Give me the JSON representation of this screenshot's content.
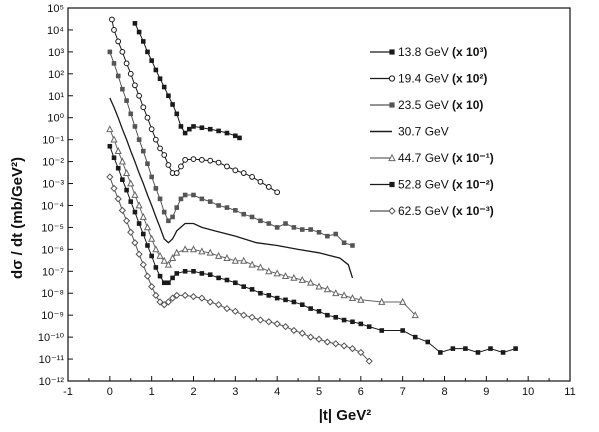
{
  "chart_data": {
    "type": "scatter",
    "title": "",
    "xlabel": "|t| GeV²",
    "ylabel": "dσ / dt (mb/GeV²)",
    "xlim": [
      -1,
      11
    ],
    "ylim_log10": [
      -12,
      5
    ],
    "yscale": "log",
    "x_ticks": [
      "-1",
      "0",
      "1",
      "2",
      "3",
      "4",
      "5",
      "6",
      "7",
      "8",
      "9",
      "10",
      "11"
    ],
    "y_ticks": [
      "10⁻¹²",
      "10⁻¹¹",
      "10⁻¹⁰",
      "10⁻⁹",
      "10⁻⁸",
      "10⁻⁷",
      "10⁻⁶",
      "10⁻⁵",
      "10⁻⁴",
      "10⁻³",
      "10⁻²",
      "10⁻¹",
      "10⁰",
      "10¹",
      "10²",
      "10³",
      "10⁴",
      "10⁵"
    ],
    "grid": false,
    "legend_position": "top-right",
    "series": [
      {
        "name": "13.8 GeV",
        "scale_label": "(x 10³)",
        "marker": "square",
        "color": "#1a1a1a",
        "points": [
          [
            0.6,
            20000
          ],
          [
            0.7,
            8000
          ],
          [
            0.8,
            3000
          ],
          [
            0.9,
            1000
          ],
          [
            1.0,
            400
          ],
          [
            1.1,
            150
          ],
          [
            1.2,
            60
          ],
          [
            1.3,
            25
          ],
          [
            1.4,
            10
          ],
          [
            1.5,
            4
          ],
          [
            1.6,
            1.5
          ],
          [
            1.7,
            0.4
          ],
          [
            1.8,
            0.2
          ],
          [
            1.9,
            0.3
          ],
          [
            2.0,
            0.4
          ],
          [
            2.2,
            0.35
          ],
          [
            2.4,
            0.3
          ],
          [
            2.6,
            0.25
          ],
          [
            2.8,
            0.2
          ],
          [
            3.0,
            0.15
          ],
          [
            3.1,
            0.12
          ]
        ]
      },
      {
        "name": "19.4 GeV",
        "scale_label": "(x 10²)",
        "marker": "circle",
        "color": "#1a1a1a",
        "points": [
          [
            0.05,
            30000
          ],
          [
            0.1,
            10000
          ],
          [
            0.2,
            3000
          ],
          [
            0.3,
            1000
          ],
          [
            0.4,
            300
          ],
          [
            0.5,
            100
          ],
          [
            0.6,
            30
          ],
          [
            0.7,
            10
          ],
          [
            0.8,
            3
          ],
          [
            0.9,
            1
          ],
          [
            1.0,
            0.3
          ],
          [
            1.1,
            0.1
          ],
          [
            1.2,
            0.04
          ],
          [
            1.3,
            0.02
          ],
          [
            1.4,
            0.007
          ],
          [
            1.5,
            0.003
          ],
          [
            1.6,
            0.003
          ],
          [
            1.7,
            0.006
          ],
          [
            1.8,
            0.012
          ],
          [
            2.0,
            0.013
          ],
          [
            2.2,
            0.012
          ],
          [
            2.4,
            0.011
          ],
          [
            2.6,
            0.009
          ],
          [
            2.8,
            0.006
          ],
          [
            3.0,
            0.004
          ],
          [
            3.2,
            0.003
          ],
          [
            3.4,
            0.002
          ],
          [
            3.6,
            0.0012
          ],
          [
            3.8,
            0.0007
          ],
          [
            4.0,
            0.0004
          ]
        ]
      },
      {
        "name": "23.5 GeV",
        "scale_label": "(x 10)",
        "marker": "square",
        "color": "#555555",
        "points": [
          [
            0.0,
            1000
          ],
          [
            0.1,
            300
          ],
          [
            0.2,
            80
          ],
          [
            0.3,
            20
          ],
          [
            0.4,
            6
          ],
          [
            0.5,
            1.5
          ],
          [
            0.6,
            0.4
          ],
          [
            0.7,
            0.1
          ],
          [
            0.8,
            0.03
          ],
          [
            0.9,
            0.008
          ],
          [
            1.0,
            0.002
          ],
          [
            1.1,
            0.0006
          ],
          [
            1.2,
            0.0002
          ],
          [
            1.3,
            5e-05
          ],
          [
            1.4,
            2e-05
          ],
          [
            1.5,
            3e-05
          ],
          [
            1.6,
            8e-05
          ],
          [
            1.7,
            0.0002
          ],
          [
            1.8,
            0.0003
          ],
          [
            2.0,
            0.0003
          ],
          [
            2.2,
            0.0002
          ],
          [
            2.4,
            0.00015
          ],
          [
            2.6,
            0.0001
          ],
          [
            2.8,
            8e-05
          ],
          [
            3.0,
            6e-05
          ],
          [
            3.2,
            4e-05
          ],
          [
            3.4,
            3e-05
          ],
          [
            3.6,
            2e-05
          ],
          [
            3.8,
            1.5e-05
          ],
          [
            4.0,
            1e-05
          ],
          [
            4.2,
            1.5e-05
          ],
          [
            4.4,
            1e-05
          ],
          [
            4.6,
            8e-06
          ],
          [
            4.8,
            8e-06
          ],
          [
            5.0,
            6e-06
          ],
          [
            5.2,
            4e-06
          ],
          [
            5.4,
            5e-06
          ],
          [
            5.6,
            2e-06
          ],
          [
            5.8,
            1.5e-06
          ]
        ]
      },
      {
        "name": "30.7 GeV",
        "scale_label": "",
        "marker": "line",
        "color": "#1a1a1a",
        "points": [
          [
            0.0,
            8
          ],
          [
            0.1,
            3
          ],
          [
            0.2,
            1
          ],
          [
            0.3,
            0.3
          ],
          [
            0.4,
            0.1
          ],
          [
            0.5,
            0.03
          ],
          [
            0.6,
            0.01
          ],
          [
            0.7,
            0.003
          ],
          [
            0.8,
            0.001
          ],
          [
            0.9,
            0.0003
          ],
          [
            1.0,
            0.0001
          ],
          [
            1.1,
            3e-05
          ],
          [
            1.2,
            1e-05
          ],
          [
            1.3,
            3e-06
          ],
          [
            1.4,
            2e-06
          ],
          [
            1.5,
            3e-06
          ],
          [
            1.6,
            7e-06
          ],
          [
            1.8,
            1.5e-05
          ],
          [
            2.0,
            1.5e-05
          ],
          [
            2.2,
            1e-05
          ],
          [
            2.5,
            7e-06
          ],
          [
            3.0,
            4e-06
          ],
          [
            3.5,
            2e-06
          ],
          [
            4.0,
            1.5e-06
          ],
          [
            4.5,
            1e-06
          ],
          [
            5.0,
            7e-07
          ],
          [
            5.5,
            4e-07
          ],
          [
            5.7,
            2e-07
          ],
          [
            5.8,
            5e-08
          ]
        ]
      },
      {
        "name": "44.7 GeV",
        "scale_label": "(x 10⁻¹)",
        "marker": "triangle",
        "color": "#666666",
        "points": [
          [
            0.0,
            0.3
          ],
          [
            0.1,
            0.1
          ],
          [
            0.2,
            0.03
          ],
          [
            0.3,
            0.01
          ],
          [
            0.4,
            0.003
          ],
          [
            0.5,
            0.001
          ],
          [
            0.6,
            0.0003
          ],
          [
            0.7,
            0.0001
          ],
          [
            0.8,
            3e-05
          ],
          [
            0.9,
            1e-05
          ],
          [
            1.0,
            3e-06
          ],
          [
            1.1,
            1e-06
          ],
          [
            1.2,
            5e-07
          ],
          [
            1.3,
            3e-07
          ],
          [
            1.4,
            2e-07
          ],
          [
            1.5,
            4e-07
          ],
          [
            1.6,
            7e-07
          ],
          [
            1.8,
            1e-06
          ],
          [
            2.0,
            1e-06
          ],
          [
            2.2,
            8e-07
          ],
          [
            2.4,
            7e-07
          ],
          [
            2.6,
            5e-07
          ],
          [
            2.8,
            4e-07
          ],
          [
            3.0,
            3e-07
          ],
          [
            3.2,
            3e-07
          ],
          [
            3.4,
            2e-07
          ],
          [
            3.6,
            1.5e-07
          ],
          [
            3.8,
            1e-07
          ],
          [
            4.0,
            8e-08
          ],
          [
            4.2,
            6e-08
          ],
          [
            4.4,
            5e-08
          ],
          [
            4.6,
            4e-08
          ],
          [
            4.8,
            3e-08
          ],
          [
            5.0,
            2e-08
          ],
          [
            5.2,
            1.5e-08
          ],
          [
            5.4,
            1e-08
          ],
          [
            5.6,
            8e-09
          ],
          [
            5.8,
            6e-09
          ],
          [
            6.0,
            5e-09
          ],
          [
            6.5,
            4e-09
          ],
          [
            7.0,
            4e-09
          ],
          [
            7.3,
            1e-09
          ]
        ]
      },
      {
        "name": "52.8 GeV",
        "scale_label": "(x 10⁻²)",
        "marker": "square",
        "color": "#1a1a1a",
        "points": [
          [
            0.0,
            0.05
          ],
          [
            0.1,
            0.015
          ],
          [
            0.2,
            0.005
          ],
          [
            0.3,
            0.0015
          ],
          [
            0.4,
            0.0005
          ],
          [
            0.5,
            0.00015
          ],
          [
            0.6,
            5e-05
          ],
          [
            0.7,
            1.5e-05
          ],
          [
            0.8,
            5e-06
          ],
          [
            0.9,
            1.5e-06
          ],
          [
            1.0,
            5e-07
          ],
          [
            1.1,
            1.5e-07
          ],
          [
            1.2,
            6e-08
          ],
          [
            1.3,
            3e-08
          ],
          [
            1.4,
            3e-08
          ],
          [
            1.5,
            5e-08
          ],
          [
            1.6,
            8e-08
          ],
          [
            1.8,
            1e-07
          ],
          [
            2.0,
            1e-07
          ],
          [
            2.2,
            8e-08
          ],
          [
            2.4,
            7e-08
          ],
          [
            2.6,
            5e-08
          ],
          [
            2.8,
            4e-08
          ],
          [
            3.0,
            3e-08
          ],
          [
            3.2,
            2e-08
          ],
          [
            3.4,
            1.5e-08
          ],
          [
            3.6,
            1e-08
          ],
          [
            3.8,
            8e-09
          ],
          [
            4.0,
            6e-09
          ],
          [
            4.2,
            5e-09
          ],
          [
            4.4,
            4e-09
          ],
          [
            4.6,
            3e-09
          ],
          [
            4.8,
            2e-09
          ],
          [
            5.0,
            1.5e-09
          ],
          [
            5.2,
            1e-09
          ],
          [
            5.4,
            8e-10
          ],
          [
            5.6,
            6e-10
          ],
          [
            5.8,
            5e-10
          ],
          [
            6.0,
            4e-10
          ],
          [
            6.2,
            3e-10
          ],
          [
            6.5,
            2e-10
          ],
          [
            7.0,
            2e-10
          ],
          [
            7.3,
            1e-10
          ],
          [
            7.6,
            6e-11
          ],
          [
            7.9,
            2e-11
          ],
          [
            8.2,
            3e-11
          ],
          [
            8.5,
            3e-11
          ],
          [
            8.8,
            2e-11
          ],
          [
            9.1,
            3e-11
          ],
          [
            9.4,
            2e-11
          ],
          [
            9.7,
            3e-11
          ]
        ]
      },
      {
        "name": "62.5 GeV",
        "scale_label": "(x 10⁻³)",
        "marker": "diamond",
        "color": "#555555",
        "points": [
          [
            0.0,
            0.002
          ],
          [
            0.1,
            0.0006
          ],
          [
            0.2,
            0.0002
          ],
          [
            0.3,
            6e-05
          ],
          [
            0.4,
            2e-05
          ],
          [
            0.5,
            6e-06
          ],
          [
            0.6,
            2e-06
          ],
          [
            0.7,
            6e-07
          ],
          [
            0.8,
            2e-07
          ],
          [
            0.9,
            6e-08
          ],
          [
            1.0,
            2e-08
          ],
          [
            1.1,
            8e-09
          ],
          [
            1.2,
            4e-09
          ],
          [
            1.3,
            3e-09
          ],
          [
            1.4,
            4e-09
          ],
          [
            1.5,
            6e-09
          ],
          [
            1.6,
            8e-09
          ],
          [
            1.8,
            8e-09
          ],
          [
            2.0,
            7e-09
          ],
          [
            2.2,
            6e-09
          ],
          [
            2.4,
            4e-09
          ],
          [
            2.6,
            3e-09
          ],
          [
            2.8,
            2e-09
          ],
          [
            3.0,
            1.5e-09
          ],
          [
            3.2,
            1e-09
          ],
          [
            3.4,
            8e-10
          ],
          [
            3.6,
            6e-10
          ],
          [
            3.8,
            5e-10
          ],
          [
            4.0,
            4e-10
          ],
          [
            4.2,
            3e-10
          ],
          [
            4.4,
            2e-10
          ],
          [
            4.6,
            1.5e-10
          ],
          [
            4.8,
            1e-10
          ],
          [
            5.0,
            8e-11
          ],
          [
            5.2,
            6e-11
          ],
          [
            5.4,
            5e-11
          ],
          [
            5.6,
            4e-11
          ],
          [
            5.8,
            3e-11
          ],
          [
            6.0,
            2e-11
          ],
          [
            6.2,
            8e-12
          ]
        ]
      }
    ]
  }
}
